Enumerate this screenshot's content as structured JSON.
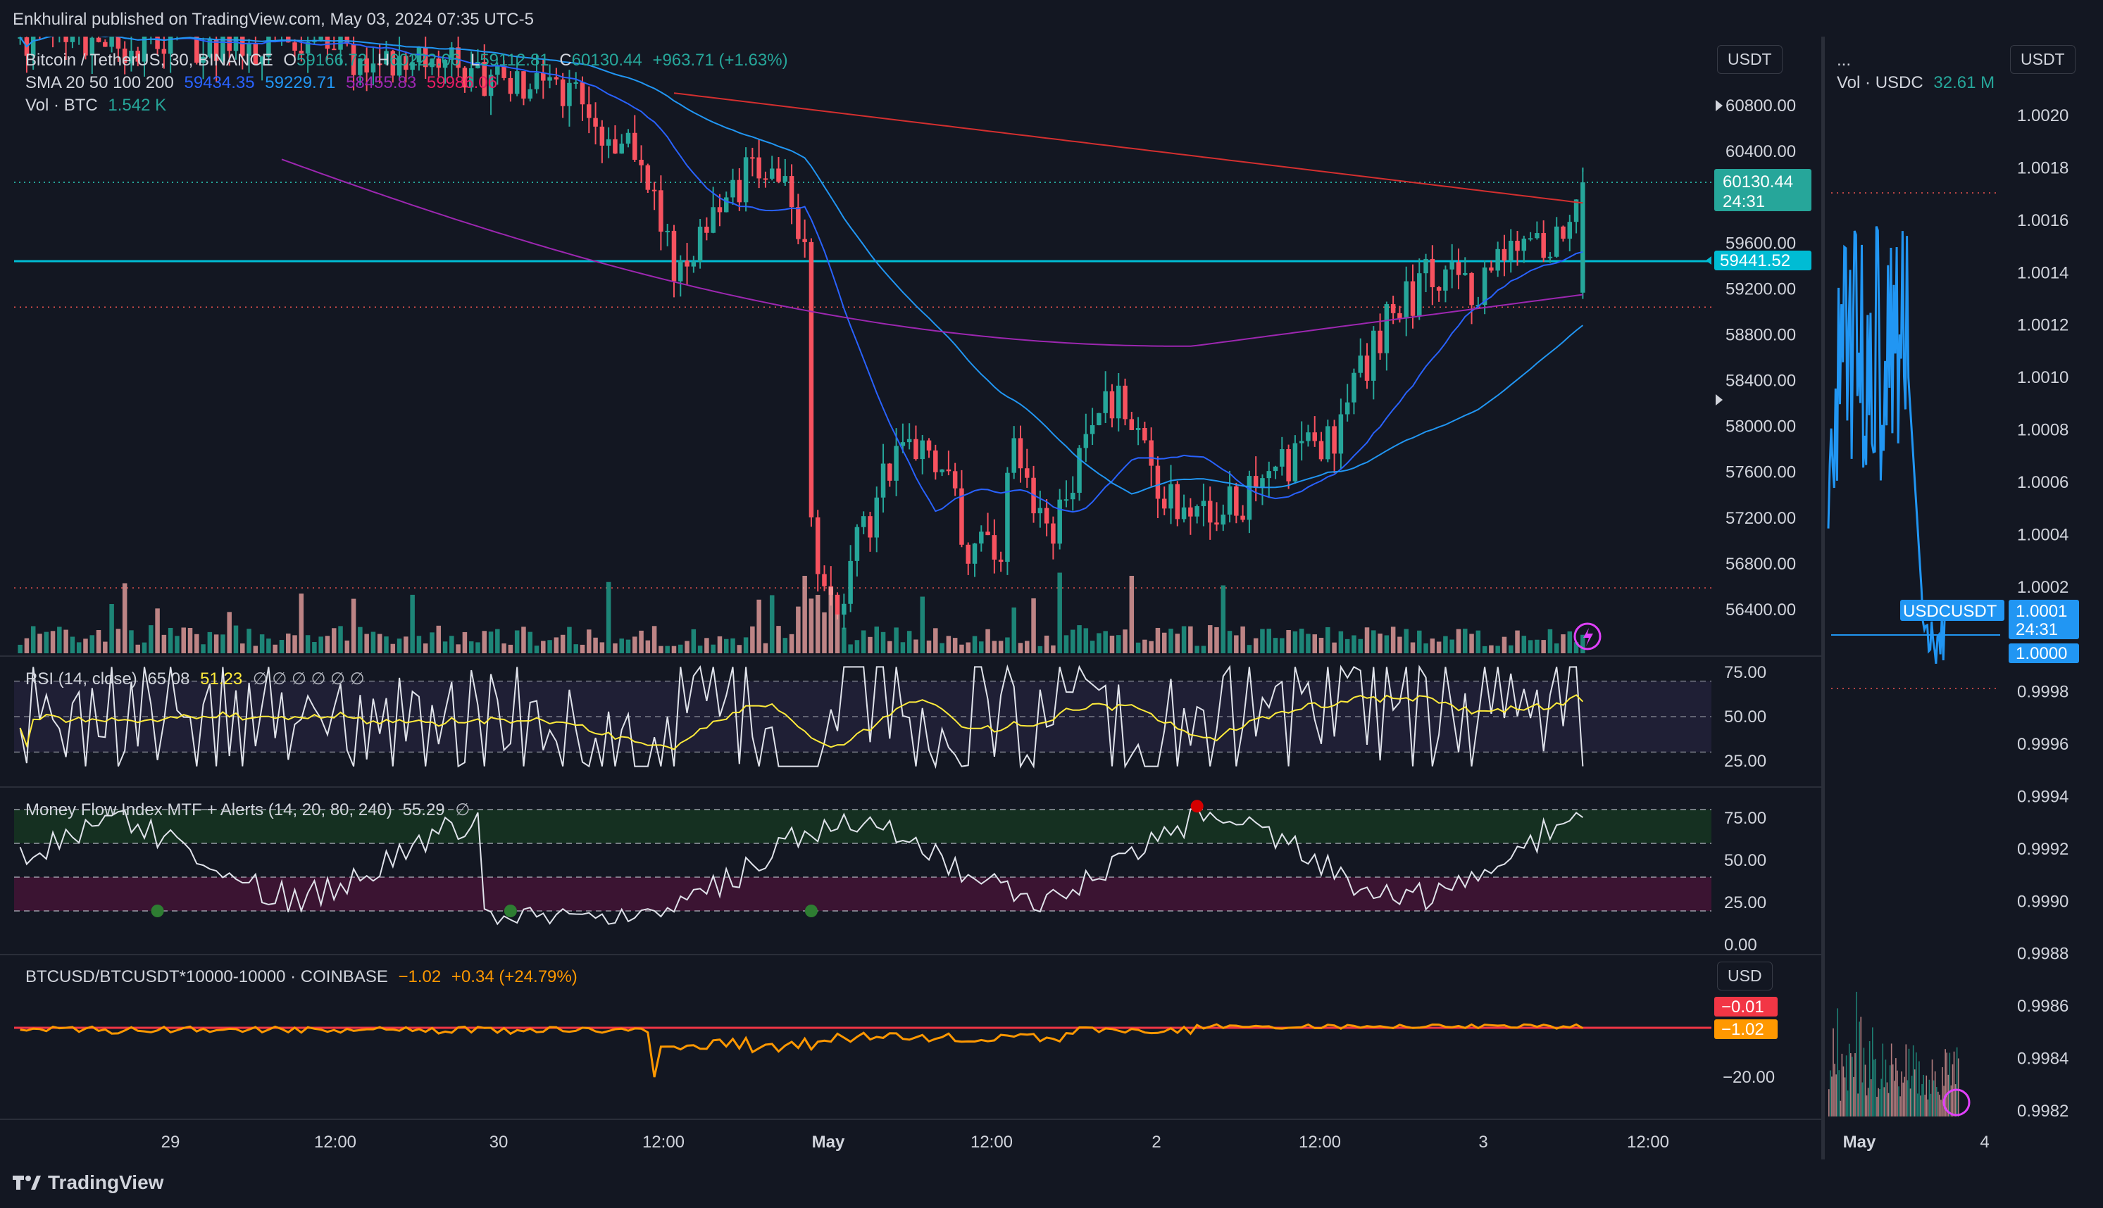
{
  "header": {
    "published": "Enkhuliral published on TradingView.com, May 03, 2024 07:35 UTC-5"
  },
  "main_chart": {
    "symbol": "Bitcoin / TetherUS, 30, BINANCE",
    "o_label": "O",
    "o": "59166.72",
    "h_label": "H",
    "h": "60222.06",
    "l_label": "L",
    "l": "59112.81",
    "c_label": "C",
    "c": "60130.44",
    "change": "+963.71 (+1.63%)",
    "sma_label": "SMA 20 50 100 200",
    "sma20": "59434.35",
    "sma50": "59229.71",
    "sma100": "58455.83",
    "sma200": "59986.06",
    "vol_label": "Vol · BTC",
    "vol_value": "1.542 K",
    "currency": "USDT",
    "last_price": "60130.44",
    "countdown": "24:31",
    "hline_price": "59441.52",
    "price_ticks": [
      "60800.00",
      "60400.00",
      "59600.00",
      "59200.00",
      "58800.00",
      "58400.00",
      "58000.00",
      "57600.00",
      "57200.00",
      "56800.00",
      "56400.00"
    ]
  },
  "rsi": {
    "label": "RSI (14, close)",
    "value1": "65.08",
    "value2": "51.23",
    "extras": "∅ ∅ ∅ ∅ ∅ ∅",
    "ticks": [
      "75.00",
      "50.00",
      "25.00"
    ]
  },
  "mfi": {
    "label": "Money Flow Index MTF + Alerts (14, 20, 80, 240)",
    "value": "55.29",
    "extra": "∅",
    "ticks": [
      "75.00",
      "50.00",
      "25.00",
      "0.00"
    ]
  },
  "spread": {
    "label": "BTCUSD/BTCUSDT*10000-10000 · COINBASE",
    "value": "−1.02",
    "change": "+0.34 (+24.79%)",
    "currency": "USD",
    "tag_red": "−0.01",
    "tag_orange": "−1.02",
    "tick": "−20.00"
  },
  "time_axis": [
    "29",
    "12:00",
    "30",
    "12:00",
    "May",
    "12:00",
    "2",
    "12:00",
    "3",
    "12:00"
  ],
  "side_chart": {
    "title": "...",
    "vol_label": "Vol · USDC",
    "vol_value": "32.61 M",
    "currency": "USDT",
    "tag_symbol": "USDCUSDT",
    "tag_price": "1.0001",
    "tag_countdown": "24:31",
    "tag_price2": "1.0000",
    "ticks": [
      "1.0020",
      "1.0018",
      "1.0016",
      "1.0014",
      "1.0012",
      "1.0010",
      "1.0008",
      "1.0006",
      "1.0004",
      "1.0002",
      "0.9998",
      "0.9996",
      "0.9994",
      "0.9992",
      "0.9990",
      "0.9988",
      "0.9986",
      "0.9984",
      "0.9982"
    ],
    "time_axis": [
      "May",
      "4"
    ]
  },
  "footer": {
    "brand": "TradingView"
  },
  "colors": {
    "up": "#26a69a",
    "down": "#ef5350",
    "sma20": "#2962ff",
    "sma50": "#2196f3",
    "sma100": "#9c27b0",
    "sma200": "#e91e63",
    "hline": "#00bcd4",
    "rsi_ma": "#ffeb3b",
    "spread": "#ff9800",
    "bg": "#131722"
  },
  "chart_data": [
    {
      "type": "line",
      "title": "Bitcoin / TetherUS, 30, BINANCE",
      "ylim": [
        56200,
        61000
      ],
      "series": [
        {
          "name": "SMA 20",
          "last": 59434.35
        },
        {
          "name": "SMA 50",
          "last": 59229.71
        },
        {
          "name": "SMA 100",
          "last": 58455.83
        },
        {
          "name": "SMA 200",
          "last": 59986.06
        }
      ],
      "ohlc_last": {
        "open": 59166.72,
        "high": 60222.06,
        "low": 59112.81,
        "close": 60130.44
      }
    },
    {
      "type": "line",
      "title": "RSI (14, close)",
      "ylim": [
        0,
        100
      ],
      "last": 65.08,
      "ma_last": 51.23
    },
    {
      "type": "line",
      "title": "Money Flow Index MTF + Alerts (14, 20, 80, 240)",
      "ylim": [
        0,
        100
      ],
      "last": 55.29
    },
    {
      "type": "line",
      "title": "BTCUSD/BTCUSDT*10000-10000 · COINBASE",
      "last": -1.02
    },
    {
      "type": "line",
      "title": "USDCUSDT",
      "ylim": [
        0.9981,
        1.0021
      ],
      "last": 1.0001
    }
  ]
}
